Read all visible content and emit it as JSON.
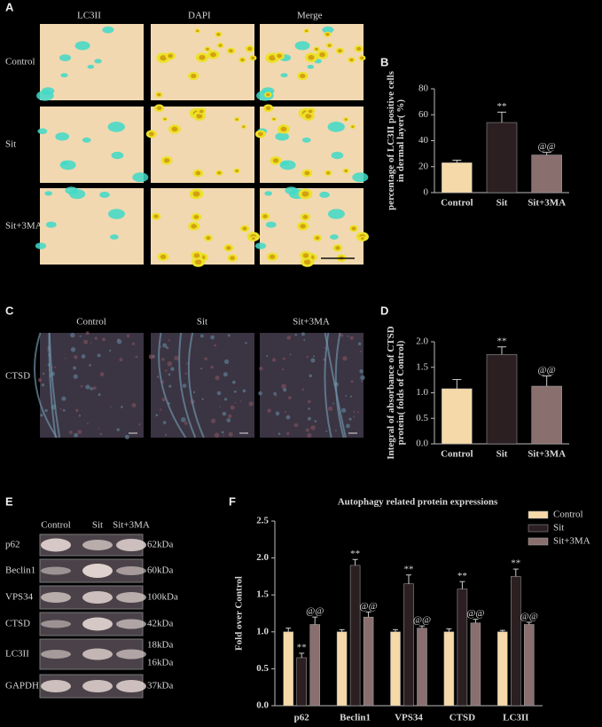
{
  "panel_a": {
    "label": "A",
    "columns": [
      "LC3II",
      "DAPI",
      "Merge"
    ],
    "rows": [
      "Control",
      "Sit",
      "Sit+3MA"
    ]
  },
  "panel_c": {
    "label": "C",
    "columns": [
      "Control",
      "Sit",
      "Sit+3MA"
    ],
    "rows": [
      "CTSD"
    ]
  },
  "panel_e": {
    "label": "E",
    "lanes": [
      "Control",
      "Sit",
      "Sit+3MA"
    ],
    "rows": [
      {
        "name": "p62",
        "kda": [
          "62kDa"
        ]
      },
      {
        "name": "Beclin1",
        "kda": [
          "60kDa"
        ]
      },
      {
        "name": "VPS34",
        "kda": [
          "100kDa"
        ]
      },
      {
        "name": "CTSD",
        "kda": [
          "42kDa"
        ]
      },
      {
        "name": "LC3II",
        "kda": [
          "18kDa",
          "16kDa"
        ]
      },
      {
        "name": "GAPDH",
        "kda": [
          "37kDa"
        ]
      }
    ]
  },
  "chart_data": [
    {
      "type": "bar",
      "label": "B",
      "ylabel": [
        "percentage of LC3II positive cells",
        "in dermal layer( %)"
      ],
      "categories": [
        "Control",
        "Sit",
        "Sit+3MA"
      ],
      "values": [
        23,
        54,
        29
      ],
      "errors": [
        2,
        8,
        2
      ],
      "annotations": [
        null,
        "**",
        "@@"
      ],
      "colors": [
        "#f5d9a8",
        "#2b1f22",
        "#8a6f6f"
      ],
      "ylim": [
        0,
        80
      ],
      "yticks": [
        0,
        20,
        40,
        60,
        80
      ]
    },
    {
      "type": "bar",
      "label": "D",
      "ylabel": [
        "Integral of absorbance of CTSD",
        "protein( folds of Control)"
      ],
      "categories": [
        "Control",
        "Sit",
        "Sit+3MA"
      ],
      "values": [
        1.08,
        1.75,
        1.13
      ],
      "errors": [
        0.18,
        0.15,
        0.2
      ],
      "annotations": [
        null,
        "**",
        "@@"
      ],
      "colors": [
        "#f5d9a8",
        "#2b1f22",
        "#8a6f6f"
      ],
      "ylim": [
        0,
        2
      ],
      "yticks": [
        {
          "value": 0,
          "label": "0.0"
        },
        0.5,
        {
          "value": 1,
          "label": "1.0"
        },
        1.5,
        {
          "value": 2,
          "label": "2.0"
        }
      ]
    },
    {
      "type": "bar",
      "label": "F",
      "title": "Autophagy related protein expressions",
      "ylabel": [
        "Fold over Control"
      ],
      "categories": [
        "p62",
        "Beclin1",
        "VPS34",
        "CTSD",
        "LC3II"
      ],
      "series": [
        {
          "name": "Control",
          "color": "#f5d9a8",
          "values": [
            1.0,
            1.0,
            1.0,
            1.0,
            1.0
          ],
          "errors": [
            0.05,
            0.03,
            0.03,
            0.04,
            0.02
          ]
        },
        {
          "name": "Sit",
          "color": "#2b1f22",
          "values": [
            0.65,
            1.9,
            1.65,
            1.58,
            1.75
          ],
          "errors": [
            0.06,
            0.08,
            0.12,
            0.1,
            0.1
          ],
          "annotation": "**"
        },
        {
          "name": "Sit+3MA",
          "color": "#8a6f6f",
          "values": [
            1.1,
            1.2,
            1.05,
            1.12,
            1.1
          ],
          "errors": [
            0.1,
            0.07,
            0.03,
            0.05,
            0.03
          ],
          "annotation": "@@"
        }
      ],
      "legend": "upper right",
      "ylim": [
        0,
        2.5
      ],
      "yticks": [
        {
          "value": 0,
          "label": "0.0"
        },
        0.5,
        {
          "value": 1,
          "label": "1.0"
        },
        1.5,
        {
          "value": 2,
          "label": "2.0"
        },
        2.5
      ]
    }
  ]
}
